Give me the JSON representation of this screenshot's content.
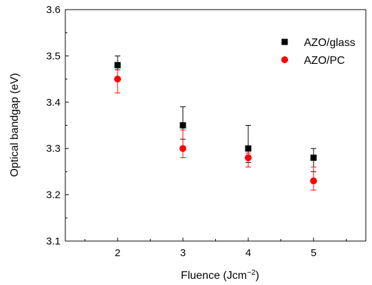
{
  "chart_data": {
    "type": "scatter",
    "xlabel_main": "Fluence (Jcm",
    "xlabel_sup": "−2",
    "xlabel_close": ")",
    "ylabel": "Optical bandgap (eV)",
    "xlim": [
      1.2,
      5.8
    ],
    "ylim": [
      3.1,
      3.6
    ],
    "xticks": [
      2,
      3,
      4,
      5
    ],
    "yticks": [
      3.1,
      3.2,
      3.3,
      3.4,
      3.5,
      3.6
    ],
    "ytick_labels": [
      "3.1",
      "3.2",
      "3.3",
      "3.4",
      "3.5",
      "3.6"
    ],
    "xtick_labels": [
      "2",
      "3",
      "4",
      "5"
    ],
    "legend_position": "top-right",
    "grid": false,
    "series": [
      {
        "name": "AZO/glass",
        "marker": "square",
        "color": "#000000",
        "points": [
          {
            "x": 2,
            "y": 3.48,
            "err_low": 3.47,
            "err_high": 3.5
          },
          {
            "x": 3,
            "y": 3.35,
            "err_low": 3.32,
            "err_high": 3.39
          },
          {
            "x": 4,
            "y": 3.3,
            "err_low": 3.27,
            "err_high": 3.35
          },
          {
            "x": 5,
            "y": 3.28,
            "err_low": 3.25,
            "err_high": 3.3
          }
        ]
      },
      {
        "name": "AZO/PC",
        "marker": "circle",
        "color": "#ff0000",
        "points": [
          {
            "x": 2,
            "y": 3.45,
            "err_low": 3.42,
            "err_high": 3.47
          },
          {
            "x": 3,
            "y": 3.3,
            "err_low": 3.28,
            "err_high": 3.34
          },
          {
            "x": 4,
            "y": 3.28,
            "err_low": 3.26,
            "err_high": 3.29
          },
          {
            "x": 5,
            "y": 3.23,
            "err_low": 3.21,
            "err_high": 3.26
          }
        ]
      }
    ]
  }
}
